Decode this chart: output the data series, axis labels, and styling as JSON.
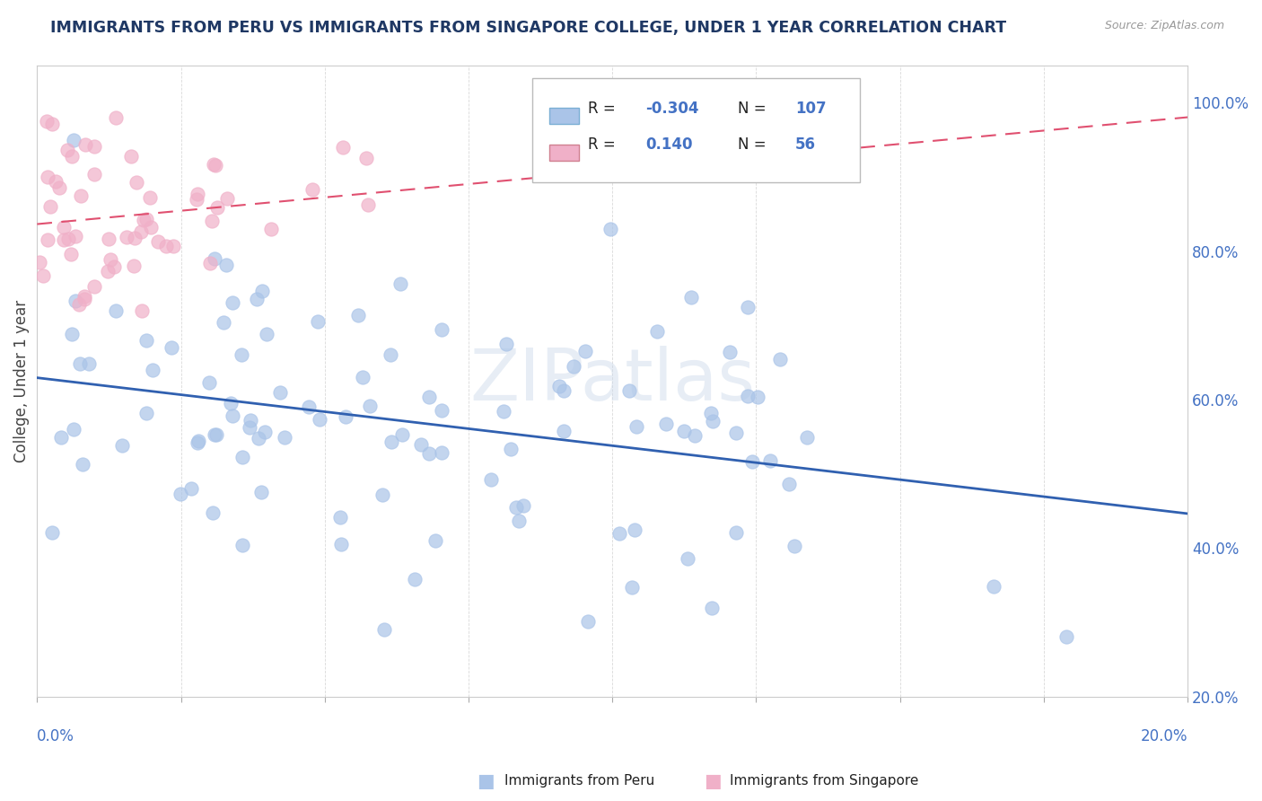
{
  "title": "IMMIGRANTS FROM PERU VS IMMIGRANTS FROM SINGAPORE COLLEGE, UNDER 1 YEAR CORRELATION CHART",
  "source": "Source: ZipAtlas.com",
  "ylabel": "College, Under 1 year",
  "peru_r": -0.304,
  "peru_n": 107,
  "singapore_r": 0.14,
  "singapore_n": 56,
  "peru_color": "#aac4e8",
  "singapore_color": "#f0b0c8",
  "peru_line_color": "#3060b0",
  "singapore_line_color": "#e05070",
  "watermark": "ZIPatlas",
  "background_color": "#ffffff",
  "title_color": "#1f3864",
  "source_color": "#999999",
  "xlim": [
    0.0,
    0.2
  ],
  "ylim": [
    0.2,
    1.05
  ],
  "right_yticks": [
    1.0,
    0.8,
    0.6,
    0.4,
    0.2
  ],
  "right_yticklabels": [
    "100.0%",
    "80.0%",
    "60.0%",
    "40.0%",
    "20.0%"
  ]
}
